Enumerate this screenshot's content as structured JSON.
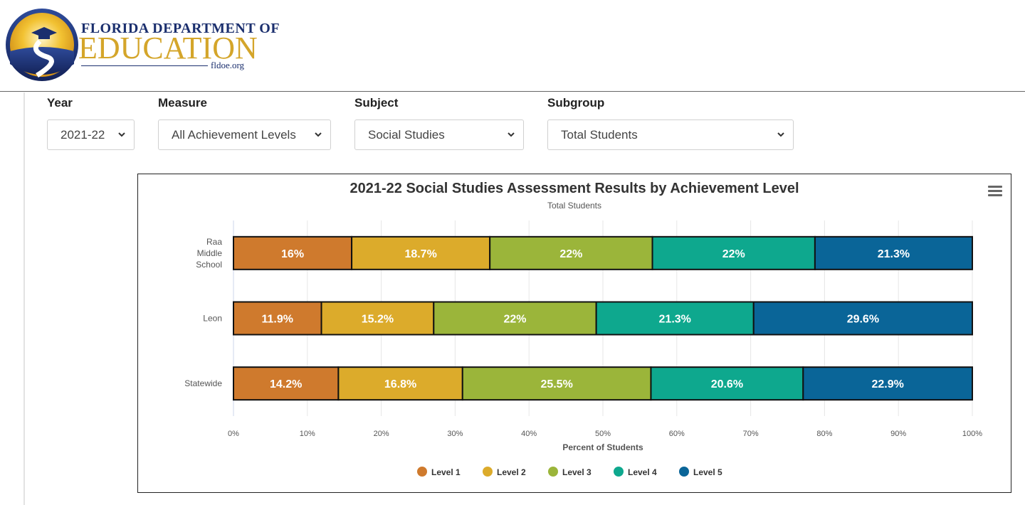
{
  "header": {
    "logo_line1": "FLORIDA DEPARTMENT OF",
    "logo_line2": "EDUCATION",
    "logo_line3": "fldoe.org"
  },
  "filters": {
    "year": {
      "label": "Year",
      "value": "2021-22"
    },
    "measure": {
      "label": "Measure",
      "value": "All Achievement Levels"
    },
    "subject": {
      "label": "Subject",
      "value": "Social Studies"
    },
    "subgroup": {
      "label": "Subgroup",
      "value": "Total Students"
    }
  },
  "chart_menu_icon": "hamburger-menu-icon",
  "chart_data": {
    "type": "bar",
    "orientation": "horizontal",
    "stacked": true,
    "title": "2021-22 Social Studies Assessment Results by Achievement Level",
    "subtitle": "Total Students",
    "xlabel": "Percent of Students",
    "ylabel": "",
    "xlim": [
      0,
      100
    ],
    "x_ticks": [
      "0%",
      "10%",
      "20%",
      "30%",
      "40%",
      "50%",
      "60%",
      "70%",
      "80%",
      "90%",
      "100%"
    ],
    "categories": [
      [
        "Raa",
        "Middle",
        "School"
      ],
      [
        "Leon"
      ],
      [
        "Statewide"
      ]
    ],
    "series": [
      {
        "name": "Level 1",
        "color": "#cf7a2d",
        "values": [
          16,
          11.9,
          14.2
        ],
        "labels": [
          "16%",
          "11.9%",
          "14.2%"
        ]
      },
      {
        "name": "Level 2",
        "color": "#dcab2b",
        "values": [
          18.7,
          15.2,
          16.8
        ],
        "labels": [
          "18.7%",
          "15.2%",
          "16.8%"
        ]
      },
      {
        "name": "Level 3",
        "color": "#9bb53a",
        "values": [
          22,
          22,
          25.5
        ],
        "labels": [
          "22%",
          "22%",
          "25.5%"
        ]
      },
      {
        "name": "Level 4",
        "color": "#0ea88e",
        "values": [
          22,
          21.3,
          20.6
        ],
        "labels": [
          "22%",
          "21.3%",
          "20.6%"
        ]
      },
      {
        "name": "Level 5",
        "color": "#0a6598",
        "values": [
          21.3,
          29.6,
          22.9
        ],
        "labels": [
          "21.3%",
          "29.6%",
          "22.9%"
        ]
      }
    ],
    "grid": true,
    "legend": "bottom-center"
  }
}
